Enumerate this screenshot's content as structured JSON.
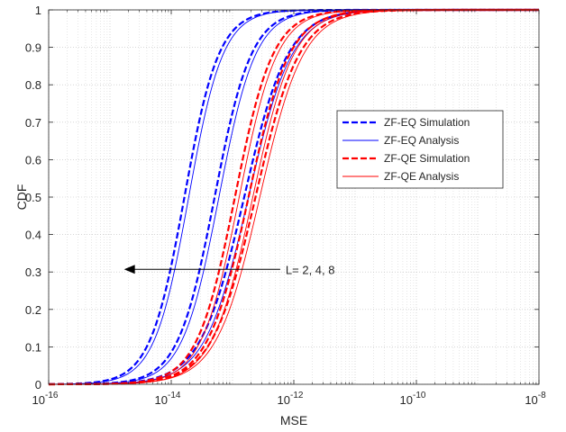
{
  "chart_data": {
    "type": "line",
    "title": "",
    "xlabel": "MSE",
    "ylabel": "CDF",
    "x_scale": "log",
    "xlim": [
      1e-16,
      1e-08
    ],
    "ylim": [
      0,
      1
    ],
    "grid": true,
    "x_ticks": [
      1e-16,
      1e-14,
      1e-12,
      1e-10,
      1e-08
    ],
    "x_tick_base": "10",
    "x_tick_exponents": [
      "-16",
      "-14",
      "-12",
      "-10",
      "-8"
    ],
    "y_ticks": [
      0,
      0.1,
      0.2,
      0.3,
      0.4,
      0.5,
      0.6,
      0.7,
      0.8,
      0.9,
      1
    ],
    "y_tick_labels": [
      "0",
      "0.1",
      "0.2",
      "0.3",
      "0.4",
      "0.5",
      "0.6",
      "0.7",
      "0.8",
      "0.9",
      "1"
    ],
    "legend_position": "right",
    "legend": [
      {
        "label": "ZF-EQ Simulation",
        "color": "#0000ff",
        "style": "dashed"
      },
      {
        "label": "ZF-EQ Analysis",
        "color": "#0000ff",
        "style": "solid"
      },
      {
        "label": "ZF-QE Simulation",
        "color": "#ff0000",
        "style": "dashed"
      },
      {
        "label": "ZF-QE Analysis",
        "color": "#ff0000",
        "style": "solid"
      }
    ],
    "annotation": {
      "text": "L= 2, 4, 8",
      "arrow_from": [
        6e-13,
        0.307
      ],
      "arrow_to": [
        1.7e-15,
        0.307
      ]
    },
    "series": [
      {
        "method": "ZF-EQ",
        "L": "2",
        "median": 1.8e-14,
        "slope": 1.55,
        "color": "#0000ff"
      },
      {
        "method": "ZF-EQ",
        "L": "4",
        "median": 5.6e-14,
        "slope": 1.45,
        "color": "#0000ff"
      },
      {
        "method": "ZF-EQ",
        "L": "8",
        "median": 1.7e-13,
        "slope": 1.22,
        "color": "#0000ff"
      },
      {
        "method": "ZF-QE",
        "L": "2",
        "median": 1.2e-13,
        "slope": 1.4,
        "color": "#ff0000"
      },
      {
        "method": "ZF-QE",
        "L": "4",
        "median": 2e-13,
        "slope": 1.3,
        "color": "#ff0000"
      },
      {
        "method": "ZF-QE",
        "L": "8",
        "median": 2.6e-13,
        "slope": 1.22,
        "color": "#ff0000"
      }
    ]
  }
}
